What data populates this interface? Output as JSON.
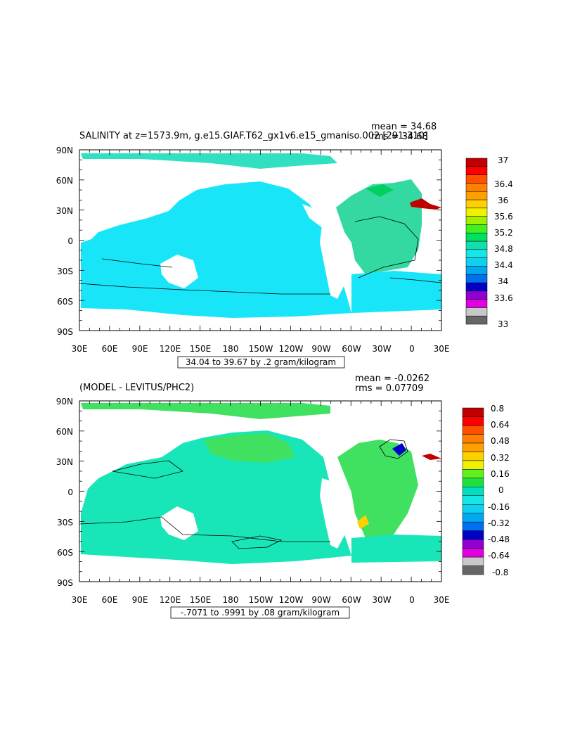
{
  "panels": [
    {
      "title": "SALINITY at z=1573.9m, g.e15.GIAF.T62_gx1v6.e15_gmaniso.002 [291-310]",
      "mean": "mean = 34.68",
      "rms": "rms = 34.68",
      "range_label": "34.04 to 39.67 by .2 gram/kilogram",
      "lat_labels": [
        "90N",
        "60N",
        "30N",
        "0",
        "30S",
        "60S",
        "90S"
      ],
      "lon_labels": [
        "30E",
        "60E",
        "90E",
        "120E",
        "150E",
        "180",
        "150W",
        "120W",
        "90W",
        "60W",
        "30W",
        "0",
        "30E"
      ],
      "colorbar": {
        "labels": [
          "37",
          "36.4",
          "36",
          "35.6",
          "35.2",
          "34.8",
          "34.4",
          "34",
          "33.6",
          "33"
        ],
        "colors": [
          "#666666",
          "#c8c8c8",
          "#e000e0",
          "#9000d0",
          "#0000c8",
          "#0070f0",
          "#00a8f0",
          "#10d0f0",
          "#18e6e6",
          "#10e0b0",
          "#00e060",
          "#40f020",
          "#a0f000",
          "#f0f000",
          "#ffd000",
          "#ffa000",
          "#ff8000",
          "#ff5000",
          "#ff0000",
          "#c00000"
        ]
      },
      "ocean_color": "#18e6f8",
      "atlantic_color": "#33d9a0"
    },
    {
      "title": "(MODEL - LEVITUS/PHC2)",
      "mean": "mean = -0.0262",
      "rms": "rms = 0.07709",
      "range_label": "-.7071 to .9991 by .08 gram/kilogram",
      "lat_labels": [
        "90N",
        "60N",
        "30N",
        "0",
        "30S",
        "60S",
        "90S"
      ],
      "lon_labels": [
        "30E",
        "60E",
        "90E",
        "120E",
        "150E",
        "180",
        "150W",
        "120W",
        "90W",
        "60W",
        "30W",
        "0",
        "30E"
      ],
      "colorbar": {
        "labels": [
          "0.8",
          "0.64",
          "0.48",
          "0.32",
          "0.16",
          "0",
          "-0.16",
          "-0.32",
          "-0.48",
          "-0.64",
          "-0.8"
        ],
        "colors": [
          "#666666",
          "#c8c8c8",
          "#e000e0",
          "#9000d0",
          "#0000c8",
          "#0070f0",
          "#00a8f0",
          "#10d0f0",
          "#18e6e6",
          "#00e0c0",
          "#20e040",
          "#60f020",
          "#f0f000",
          "#ffd000",
          "#ffa000",
          "#ff8000",
          "#ff5000",
          "#ff0000",
          "#c00000"
        ]
      },
      "ocean_color": "#19e6b8",
      "positive_color": "#40e060"
    }
  ]
}
